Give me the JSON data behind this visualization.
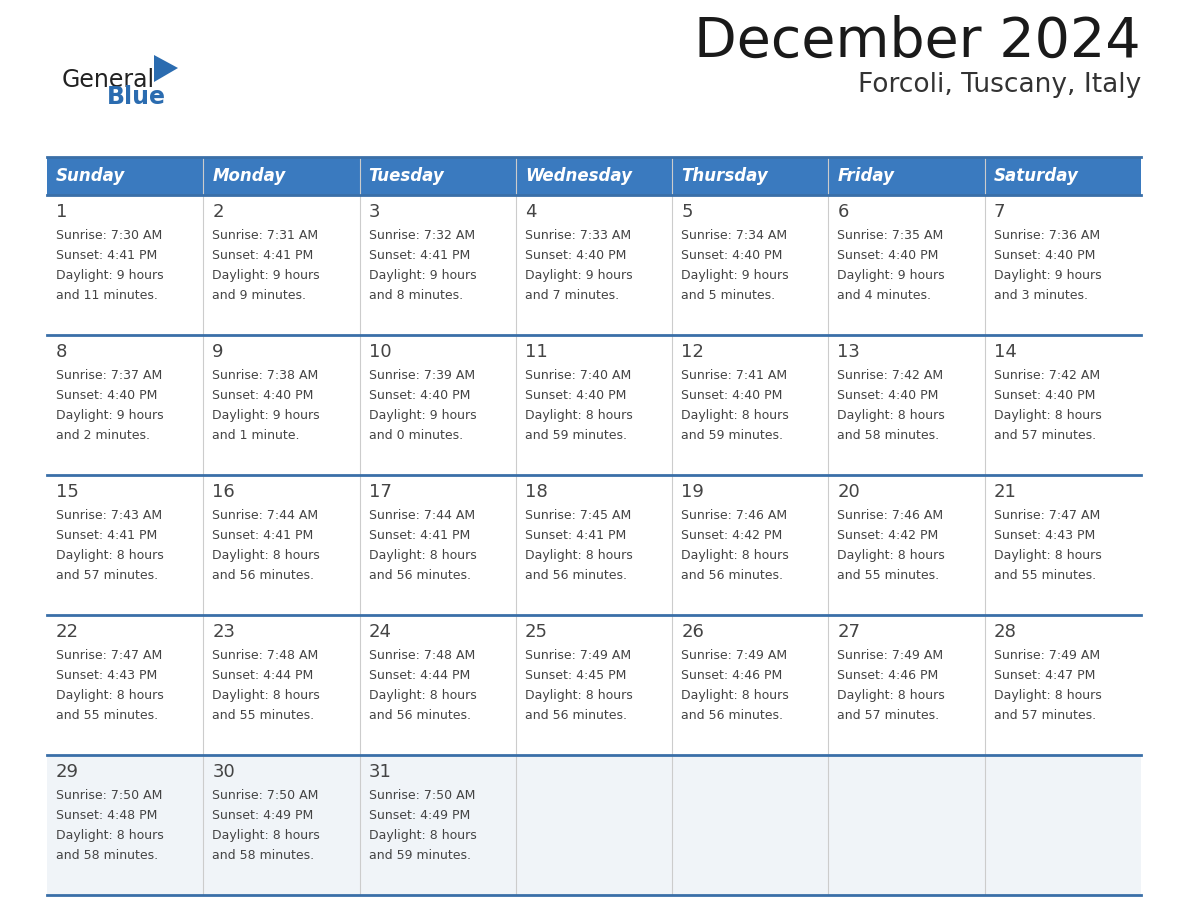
{
  "title": "December 2024",
  "subtitle": "Forcoli, Tuscany, Italy",
  "days_of_week": [
    "Sunday",
    "Monday",
    "Tuesday",
    "Wednesday",
    "Thursday",
    "Friday",
    "Saturday"
  ],
  "header_bg": "#3a7abf",
  "header_text": "#ffffff",
  "row_bg": "#ffffff",
  "row_bg_last": "#f0f4f8",
  "border_color": "#3a6fa8",
  "divider_color": "#cccccc",
  "text_color": "#444444",
  "calendar_data": [
    [
      {
        "day": 1,
        "sunrise": "7:30 AM",
        "sunset": "4:41 PM",
        "daylight": "9 hours and 11 minutes."
      },
      {
        "day": 2,
        "sunrise": "7:31 AM",
        "sunset": "4:41 PM",
        "daylight": "9 hours and 9 minutes."
      },
      {
        "day": 3,
        "sunrise": "7:32 AM",
        "sunset": "4:41 PM",
        "daylight": "9 hours and 8 minutes."
      },
      {
        "day": 4,
        "sunrise": "7:33 AM",
        "sunset": "4:40 PM",
        "daylight": "9 hours and 7 minutes."
      },
      {
        "day": 5,
        "sunrise": "7:34 AM",
        "sunset": "4:40 PM",
        "daylight": "9 hours and 5 minutes."
      },
      {
        "day": 6,
        "sunrise": "7:35 AM",
        "sunset": "4:40 PM",
        "daylight": "9 hours and 4 minutes."
      },
      {
        "day": 7,
        "sunrise": "7:36 AM",
        "sunset": "4:40 PM",
        "daylight": "9 hours and 3 minutes."
      }
    ],
    [
      {
        "day": 8,
        "sunrise": "7:37 AM",
        "sunset": "4:40 PM",
        "daylight": "9 hours and 2 minutes."
      },
      {
        "day": 9,
        "sunrise": "7:38 AM",
        "sunset": "4:40 PM",
        "daylight": "9 hours and 1 minute."
      },
      {
        "day": 10,
        "sunrise": "7:39 AM",
        "sunset": "4:40 PM",
        "daylight": "9 hours and 0 minutes."
      },
      {
        "day": 11,
        "sunrise": "7:40 AM",
        "sunset": "4:40 PM",
        "daylight": "8 hours and 59 minutes."
      },
      {
        "day": 12,
        "sunrise": "7:41 AM",
        "sunset": "4:40 PM",
        "daylight": "8 hours and 59 minutes."
      },
      {
        "day": 13,
        "sunrise": "7:42 AM",
        "sunset": "4:40 PM",
        "daylight": "8 hours and 58 minutes."
      },
      {
        "day": 14,
        "sunrise": "7:42 AM",
        "sunset": "4:40 PM",
        "daylight": "8 hours and 57 minutes."
      }
    ],
    [
      {
        "day": 15,
        "sunrise": "7:43 AM",
        "sunset": "4:41 PM",
        "daylight": "8 hours and 57 minutes."
      },
      {
        "day": 16,
        "sunrise": "7:44 AM",
        "sunset": "4:41 PM",
        "daylight": "8 hours and 56 minutes."
      },
      {
        "day": 17,
        "sunrise": "7:44 AM",
        "sunset": "4:41 PM",
        "daylight": "8 hours and 56 minutes."
      },
      {
        "day": 18,
        "sunrise": "7:45 AM",
        "sunset": "4:41 PM",
        "daylight": "8 hours and 56 minutes."
      },
      {
        "day": 19,
        "sunrise": "7:46 AM",
        "sunset": "4:42 PM",
        "daylight": "8 hours and 56 minutes."
      },
      {
        "day": 20,
        "sunrise": "7:46 AM",
        "sunset": "4:42 PM",
        "daylight": "8 hours and 55 minutes."
      },
      {
        "day": 21,
        "sunrise": "7:47 AM",
        "sunset": "4:43 PM",
        "daylight": "8 hours and 55 minutes."
      }
    ],
    [
      {
        "day": 22,
        "sunrise": "7:47 AM",
        "sunset": "4:43 PM",
        "daylight": "8 hours and 55 minutes."
      },
      {
        "day": 23,
        "sunrise": "7:48 AM",
        "sunset": "4:44 PM",
        "daylight": "8 hours and 55 minutes."
      },
      {
        "day": 24,
        "sunrise": "7:48 AM",
        "sunset": "4:44 PM",
        "daylight": "8 hours and 56 minutes."
      },
      {
        "day": 25,
        "sunrise": "7:49 AM",
        "sunset": "4:45 PM",
        "daylight": "8 hours and 56 minutes."
      },
      {
        "day": 26,
        "sunrise": "7:49 AM",
        "sunset": "4:46 PM",
        "daylight": "8 hours and 56 minutes."
      },
      {
        "day": 27,
        "sunrise": "7:49 AM",
        "sunset": "4:46 PM",
        "daylight": "8 hours and 57 minutes."
      },
      {
        "day": 28,
        "sunrise": "7:49 AM",
        "sunset": "4:47 PM",
        "daylight": "8 hours and 57 minutes."
      }
    ],
    [
      {
        "day": 29,
        "sunrise": "7:50 AM",
        "sunset": "4:48 PM",
        "daylight": "8 hours and 58 minutes."
      },
      {
        "day": 30,
        "sunrise": "7:50 AM",
        "sunset": "4:49 PM",
        "daylight": "8 hours and 58 minutes."
      },
      {
        "day": 31,
        "sunrise": "7:50 AM",
        "sunset": "4:49 PM",
        "daylight": "8 hours and 59 minutes."
      },
      null,
      null,
      null,
      null
    ]
  ],
  "logo_general_color": "#222222",
  "logo_blue_color": "#2b6cb0",
  "logo_triangle_color": "#2b6cb0",
  "title_color": "#1a1a1a",
  "subtitle_color": "#333333"
}
